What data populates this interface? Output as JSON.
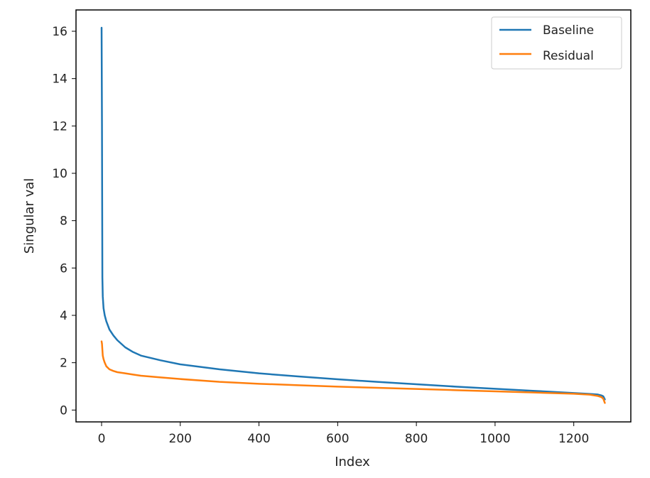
{
  "chart_data": {
    "type": "line",
    "title": "",
    "xlabel": "Index",
    "ylabel": "Singular val",
    "xlim": [
      -65,
      1345
    ],
    "ylim": [
      -0.5,
      16.9
    ],
    "xticks": [
      0,
      200,
      400,
      600,
      800,
      1000,
      1200
    ],
    "yticks": [
      0,
      2,
      4,
      6,
      8,
      10,
      12,
      14,
      16
    ],
    "grid": false,
    "legend_position": "top-right",
    "series": [
      {
        "name": "Baseline",
        "color": "#1f77b4",
        "x": [
          0,
          1,
          2,
          3,
          5,
          8,
          12,
          20,
          30,
          40,
          60,
          80,
          100,
          150,
          200,
          300,
          400,
          500,
          600,
          700,
          800,
          900,
          1000,
          1100,
          1200,
          1240,
          1260,
          1270,
          1275,
          1279
        ],
        "y": [
          16.15,
          12.0,
          5.6,
          4.8,
          4.3,
          4.0,
          3.75,
          3.4,
          3.15,
          2.95,
          2.65,
          2.45,
          2.3,
          2.1,
          1.93,
          1.72,
          1.55,
          1.42,
          1.3,
          1.19,
          1.09,
          0.99,
          0.9,
          0.81,
          0.72,
          0.68,
          0.66,
          0.62,
          0.58,
          0.45
        ]
      },
      {
        "name": "Residual",
        "color": "#ff7f0e",
        "x": [
          0,
          1,
          2,
          3,
          5,
          8,
          12,
          20,
          30,
          40,
          60,
          80,
          100,
          150,
          200,
          300,
          400,
          500,
          600,
          700,
          800,
          900,
          1000,
          1100,
          1200,
          1240,
          1260,
          1270,
          1275,
          1279
        ],
        "y": [
          2.9,
          2.8,
          2.55,
          2.3,
          2.15,
          2.0,
          1.85,
          1.72,
          1.65,
          1.6,
          1.55,
          1.5,
          1.45,
          1.38,
          1.31,
          1.19,
          1.11,
          1.05,
          0.99,
          0.94,
          0.89,
          0.84,
          0.79,
          0.74,
          0.69,
          0.65,
          0.6,
          0.55,
          0.48,
          0.3
        ]
      }
    ]
  }
}
